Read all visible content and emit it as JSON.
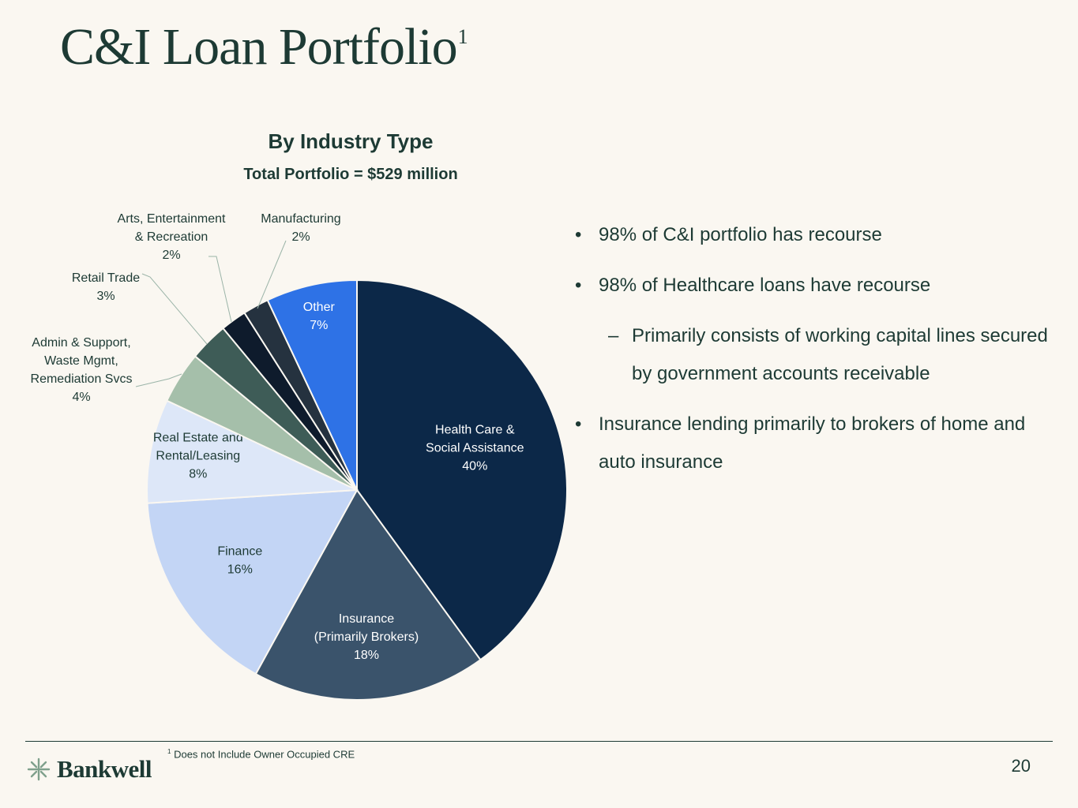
{
  "header": {
    "title": "C&I Loan Portfolio",
    "title_superscript": "1"
  },
  "chart_data": {
    "type": "pie",
    "title": "By Industry Type",
    "subtitle": "Total Portfolio = $529 million",
    "start": "12 o'clock",
    "direction": "clockwise",
    "slices": [
      {
        "label": "Health Care & Social Assistance",
        "value": 40,
        "display": "40%",
        "color": "#0c2848",
        "text_color": "#ffffff"
      },
      {
        "label": "Insurance (Primarily Brokers)",
        "value": 18,
        "display": "18%",
        "color": "#3a536b",
        "text_color": "#ffffff"
      },
      {
        "label": "Finance",
        "value": 16,
        "display": "16%",
        "color": "#c3d5f5",
        "text_color": "#1d3a34"
      },
      {
        "label": "Real Estate and Rental/Leasing",
        "value": 8,
        "display": "8%",
        "color": "#dde7f8",
        "text_color": "#1d3a34"
      },
      {
        "label": "Admin & Support, Waste Mgmt, Remediation Svcs",
        "value": 4,
        "display": "4%",
        "color": "#a5bfaa",
        "text_color": "#1d3a34"
      },
      {
        "label": "Retail Trade",
        "value": 3,
        "display": "3%",
        "color": "#3e5c57",
        "text_color": "#1d3a34"
      },
      {
        "label": "Arts, Entertainment & Recreation",
        "value": 2,
        "display": "2%",
        "color": "#0e1b2c",
        "text_color": "#1d3a34"
      },
      {
        "label": "Manufacturing",
        "value": 2,
        "display": "2%",
        "color": "#25323f",
        "text_color": "#1d3a34"
      },
      {
        "label": "Other",
        "value": 7,
        "display": "7%",
        "color": "#2e72e6",
        "text_color": "#ffffff"
      }
    ],
    "label_lines": [
      [
        "Health Care &",
        "Social Assistance"
      ],
      [
        "Insurance",
        "(Primarily Brokers)"
      ],
      [
        "Finance"
      ],
      [
        "Real Estate and",
        "Rental/Leasing"
      ],
      [
        "Admin & Support,",
        "Waste Mgmt,",
        "Remediation Svcs"
      ],
      [
        "Retail Trade"
      ],
      [
        "Arts, Entertainment",
        "& Recreation"
      ],
      [
        "Manufacturing"
      ],
      [
        "Other"
      ]
    ]
  },
  "bullets": [
    {
      "text": "98% of C&I portfolio has recourse",
      "level": 1,
      "marker": "•"
    },
    {
      "text": "98% of Healthcare loans have recourse",
      "level": 1,
      "marker": "•"
    },
    {
      "text": "Primarily consists of working capital lines secured by government accounts receivable",
      "level": 2,
      "marker": "–"
    },
    {
      "text": "Insurance lending primarily to brokers of home and auto insurance",
      "level": 1,
      "marker": "•"
    }
  ],
  "footer": {
    "footnote_marker": "1",
    "footnote": "Does not Include Owner Occupied CRE",
    "logo_text": "Bankwell",
    "logo_icon": "bankwell-logo-icon",
    "page_number": "20"
  }
}
